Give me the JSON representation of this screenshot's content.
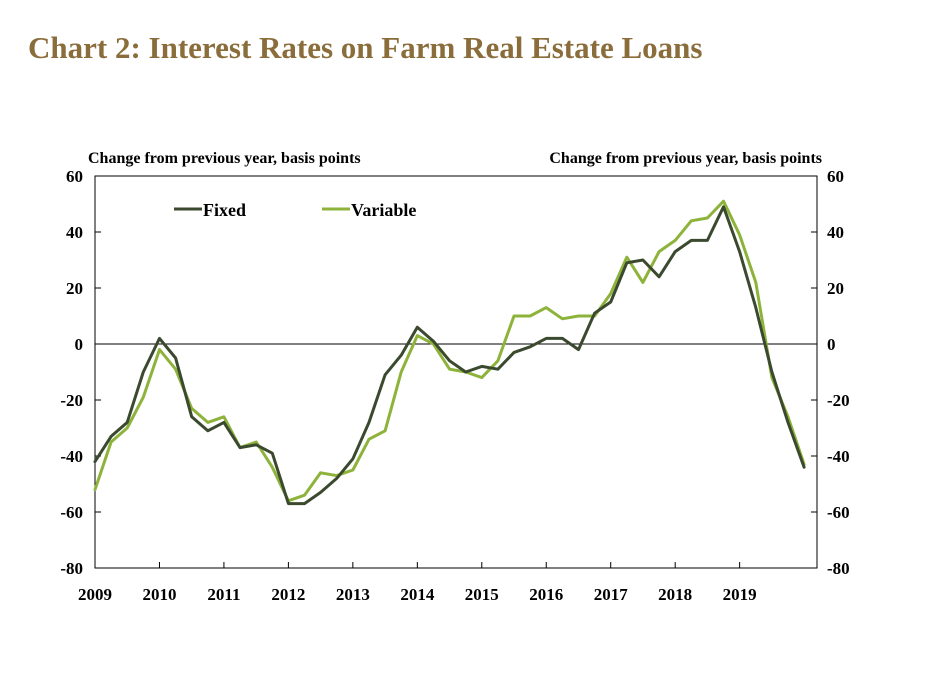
{
  "title": "Chart 2: Interest Rates on Farm Real Estate Loans",
  "colors": {
    "title": "#8a6d3b",
    "fixed": "#3b4a2f",
    "variable": "#8db33a"
  },
  "chart_data": {
    "type": "line",
    "title": "Chart 2: Interest Rates on Farm Real Estate Loans",
    "ylabel_left": "Change from previous year, basis points",
    "ylabel_right": "Change from previous year, basis points",
    "ylim": [
      -80,
      60
    ],
    "yticks": [
      "60",
      "40",
      "20",
      "0",
      "-20",
      "-40",
      "-60",
      "-80"
    ],
    "xlim": [
      2009,
      2020.2
    ],
    "xticks": [
      "2009",
      "2010",
      "2011",
      "2012",
      "2013",
      "2014",
      "2015",
      "2016",
      "2017",
      "2018",
      "2019"
    ],
    "legend": {
      "position": "top-left",
      "entries": [
        "Fixed",
        "Variable"
      ]
    },
    "grid": false,
    "series": [
      {
        "name": "Fixed",
        "x": [
          2009,
          2009.25,
          2009.5,
          2009.75,
          2010,
          2010.25,
          2010.5,
          2010.75,
          2011,
          2011.25,
          2011.5,
          2011.75,
          2012,
          2012.25,
          2012.5,
          2012.75,
          2013,
          2013.25,
          2013.5,
          2013.75,
          2014,
          2014.25,
          2014.5,
          2014.75,
          2015,
          2015.25,
          2015.5,
          2015.75,
          2016,
          2016.25,
          2016.5,
          2016.75,
          2017,
          2017.25,
          2017.5,
          2017.75,
          2018,
          2018.25,
          2018.5,
          2018.75,
          2019,
          2019.25,
          2019.5,
          2019.75,
          2020
        ],
        "values": [
          -42,
          -33,
          -28,
          -10,
          2,
          -5,
          -26,
          -31,
          -28,
          -37,
          -36,
          -39,
          -57,
          -57,
          -53,
          -48,
          -41,
          -28,
          -11,
          -4,
          6,
          1,
          -6,
          -10,
          -8,
          -9,
          -3,
          -1,
          2,
          2,
          -2,
          11,
          15,
          29,
          30,
          24,
          33,
          37,
          37,
          49,
          33,
          13,
          -10,
          -28,
          -44
        ]
      },
      {
        "name": "Variable",
        "x": [
          2009,
          2009.25,
          2009.5,
          2009.75,
          2010,
          2010.25,
          2010.5,
          2010.75,
          2011,
          2011.25,
          2011.5,
          2011.75,
          2012,
          2012.25,
          2012.5,
          2012.75,
          2013,
          2013.25,
          2013.5,
          2013.75,
          2014,
          2014.25,
          2014.5,
          2014.75,
          2015,
          2015.25,
          2015.5,
          2015.75,
          2016,
          2016.25,
          2016.5,
          2016.75,
          2017,
          2017.25,
          2017.5,
          2017.75,
          2018,
          2018.25,
          2018.5,
          2018.75,
          2019,
          2019.25,
          2019.5,
          2019.75,
          2020
        ],
        "values": [
          -52,
          -35,
          -30,
          -19,
          -2,
          -9,
          -23,
          -28,
          -26,
          -37,
          -35,
          -44,
          -56,
          -54,
          -46,
          -47,
          -45,
          -34,
          -31,
          -10,
          3,
          0,
          -9,
          -10,
          -12,
          -6,
          10,
          10,
          13,
          9,
          10,
          10,
          18,
          31,
          22,
          33,
          37,
          44,
          45,
          51,
          39,
          22,
          -12,
          -26,
          -43
        ]
      }
    ]
  }
}
